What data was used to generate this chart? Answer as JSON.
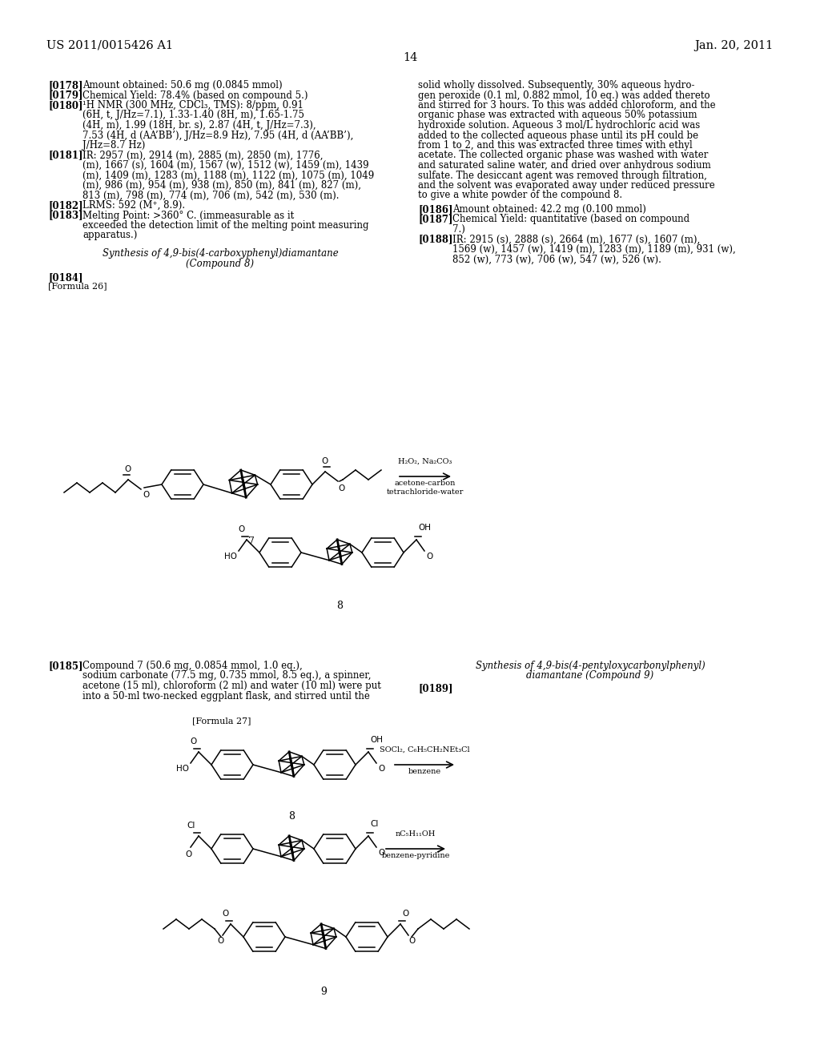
{
  "background_color": "#ffffff",
  "header_left": "US 2011/0015426 A1",
  "header_right": "Jan. 20, 2011",
  "page_number": "14"
}
